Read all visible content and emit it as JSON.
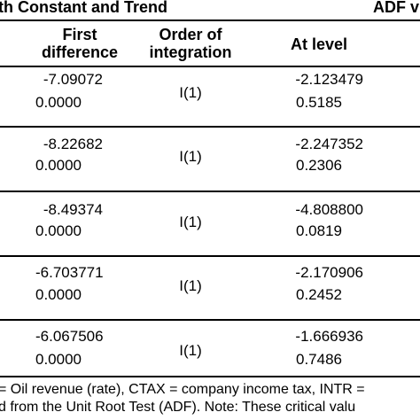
{
  "header": {
    "left_title": "th Constant and Trend",
    "right_title": "ADF v"
  },
  "columns": {
    "first_difference": [
      "First",
      "difference"
    ],
    "order_of_integration": [
      "Order of",
      "integration"
    ],
    "at_level": "At level"
  },
  "rows": [
    {
      "diff_stat": "-7.09072",
      "diff_p": "0.0000",
      "order": "I(1)",
      "level_stat": "-2.123479",
      "level_p": "0.5185"
    },
    {
      "diff_stat": "-8.22682",
      "diff_p": "0.0000",
      "order": "I(1)",
      "level_stat": "-2.247352",
      "level_p": "0.2306"
    },
    {
      "diff_stat": "-8.49374",
      "diff_p": "0.0000",
      "order": "I(1)",
      "level_stat": "-4.808800",
      "level_p": "0.0819"
    },
    {
      "diff_stat": "-6.703771",
      "diff_p": "0.0000",
      "order": "I(1)",
      "level_stat": "-2.170906",
      "level_p": "0.2452"
    },
    {
      "diff_stat": "-6.067506",
      "diff_p": "0.0000",
      "order": "I(1)",
      "level_stat": "-1.666936",
      "level_p": "0.7486"
    }
  ],
  "footnote": {
    "line1": "= Oil revenue (rate), CTAX = company income tax, INTR =",
    "line2": "d from the Unit Root Test (ADF). Note: These critical valu"
  }
}
